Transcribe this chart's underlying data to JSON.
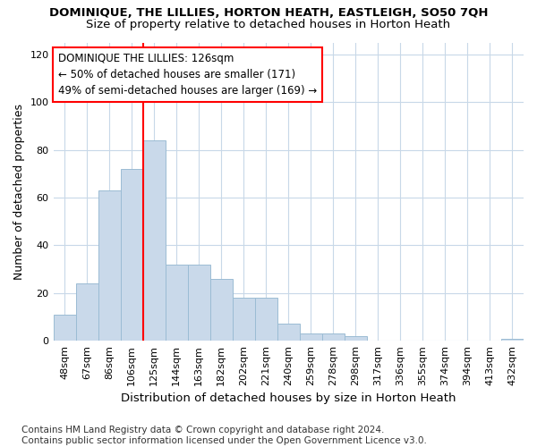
{
  "title": "DOMINIQUE, THE LILLIES, HORTON HEATH, EASTLEIGH, SO50 7QH",
  "subtitle": "Size of property relative to detached houses in Horton Heath",
  "xlabel": "Distribution of detached houses by size in Horton Heath",
  "ylabel": "Number of detached properties",
  "bar_labels": [
    "48sqm",
    "67sqm",
    "86sqm",
    "106sqm",
    "125sqm",
    "144sqm",
    "163sqm",
    "182sqm",
    "202sqm",
    "221sqm",
    "240sqm",
    "259sqm",
    "278sqm",
    "298sqm",
    "317sqm",
    "336sqm",
    "355sqm",
    "374sqm",
    "394sqm",
    "413sqm",
    "432sqm"
  ],
  "bar_values": [
    11,
    24,
    63,
    72,
    84,
    32,
    32,
    26,
    18,
    18,
    7,
    3,
    3,
    2,
    0,
    0,
    0,
    0,
    0,
    0,
    1
  ],
  "bar_color": "#c9d9ea",
  "bar_edge_color": "#9bbcd4",
  "vline_x_index": 4,
  "vline_color": "red",
  "annotation_text": "DOMINIQUE THE LILLIES: 126sqm\n← 50% of detached houses are smaller (171)\n49% of semi-detached houses are larger (169) →",
  "annotation_box_color": "white",
  "annotation_box_edge_color": "red",
  "ylim": [
    0,
    125
  ],
  "yticks": [
    0,
    20,
    40,
    60,
    80,
    100,
    120
  ],
  "footnote": "Contains HM Land Registry data © Crown copyright and database right 2024.\nContains public sector information licensed under the Open Government Licence v3.0.",
  "title_fontsize": 9.5,
  "subtitle_fontsize": 9.5,
  "ylabel_fontsize": 9,
  "xlabel_fontsize": 9.5,
  "tick_fontsize": 8,
  "annotation_fontsize": 8.5,
  "footnote_fontsize": 7.5,
  "background_color": "#ffffff",
  "grid_color": "#c8d8e8"
}
